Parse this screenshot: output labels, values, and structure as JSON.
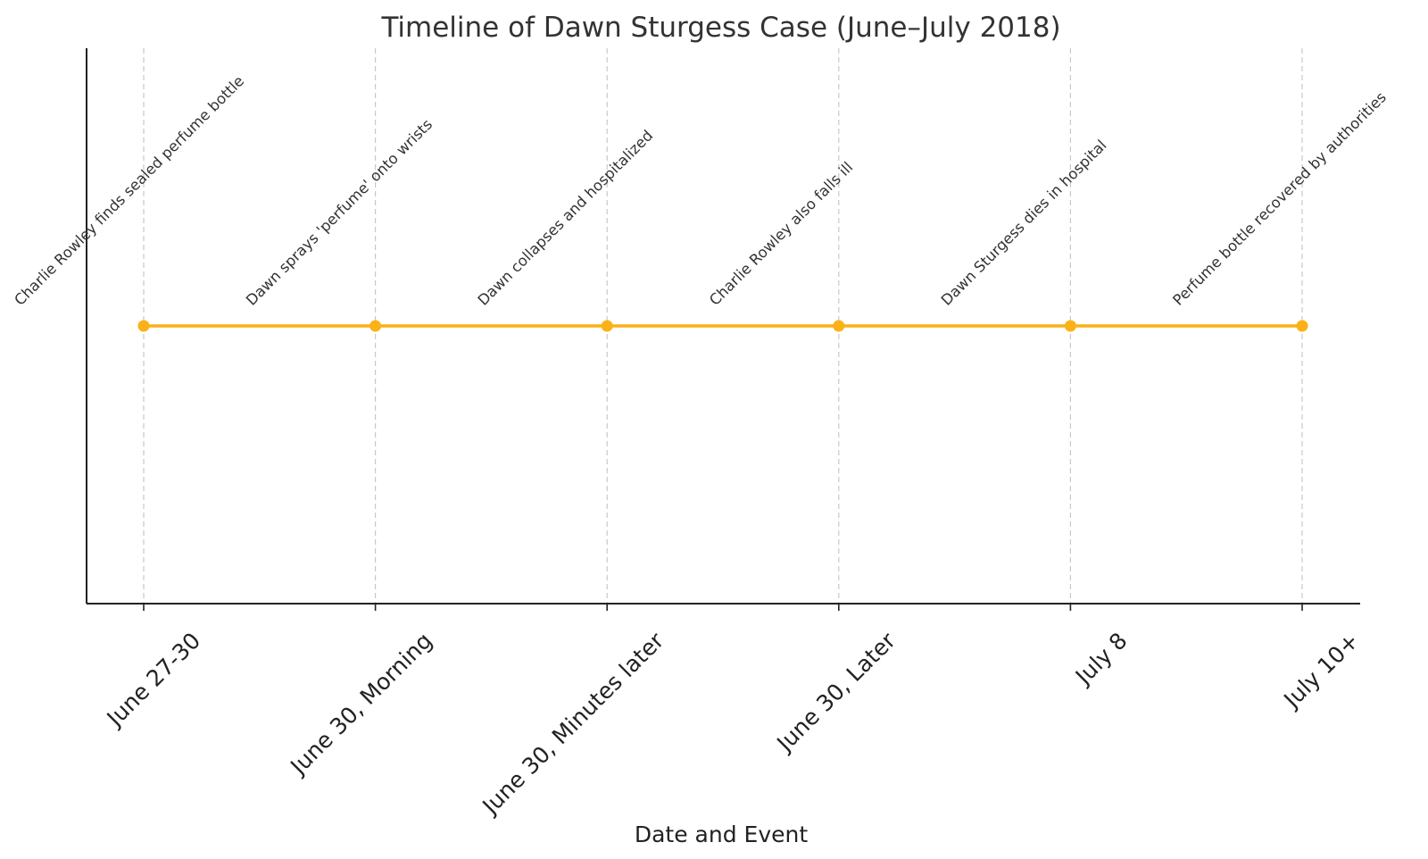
{
  "chart_data": {
    "type": "line",
    "title": "Timeline of Dawn Sturgess Case (June–July 2018)",
    "xlabel": "Date and Event",
    "ylabel": "",
    "categories": [
      "June 27-30",
      "June 30, Morning",
      "June 30, Minutes later",
      "June 30, Later",
      "July 8",
      "July 10+"
    ],
    "series": [
      {
        "values": [
          1,
          1,
          1,
          1,
          1,
          1
        ],
        "color": "#FBB117"
      }
    ],
    "annotations": [
      "Charlie Rowley finds sealed perfume bottle",
      "Dawn sprays 'perfume' onto wrists",
      "Dawn collapses and hospitalized",
      "Charlie Rowley also falls ill",
      "Dawn Sturgess dies in hospital",
      "Perfume bottle recovered by authorities"
    ],
    "ylim": [
      0,
      2
    ],
    "grid": "vertical dashed",
    "colors": {
      "line": "#FBB117",
      "grid": "#c8c8c8",
      "axis": "#222222",
      "text": "#333333"
    }
  }
}
